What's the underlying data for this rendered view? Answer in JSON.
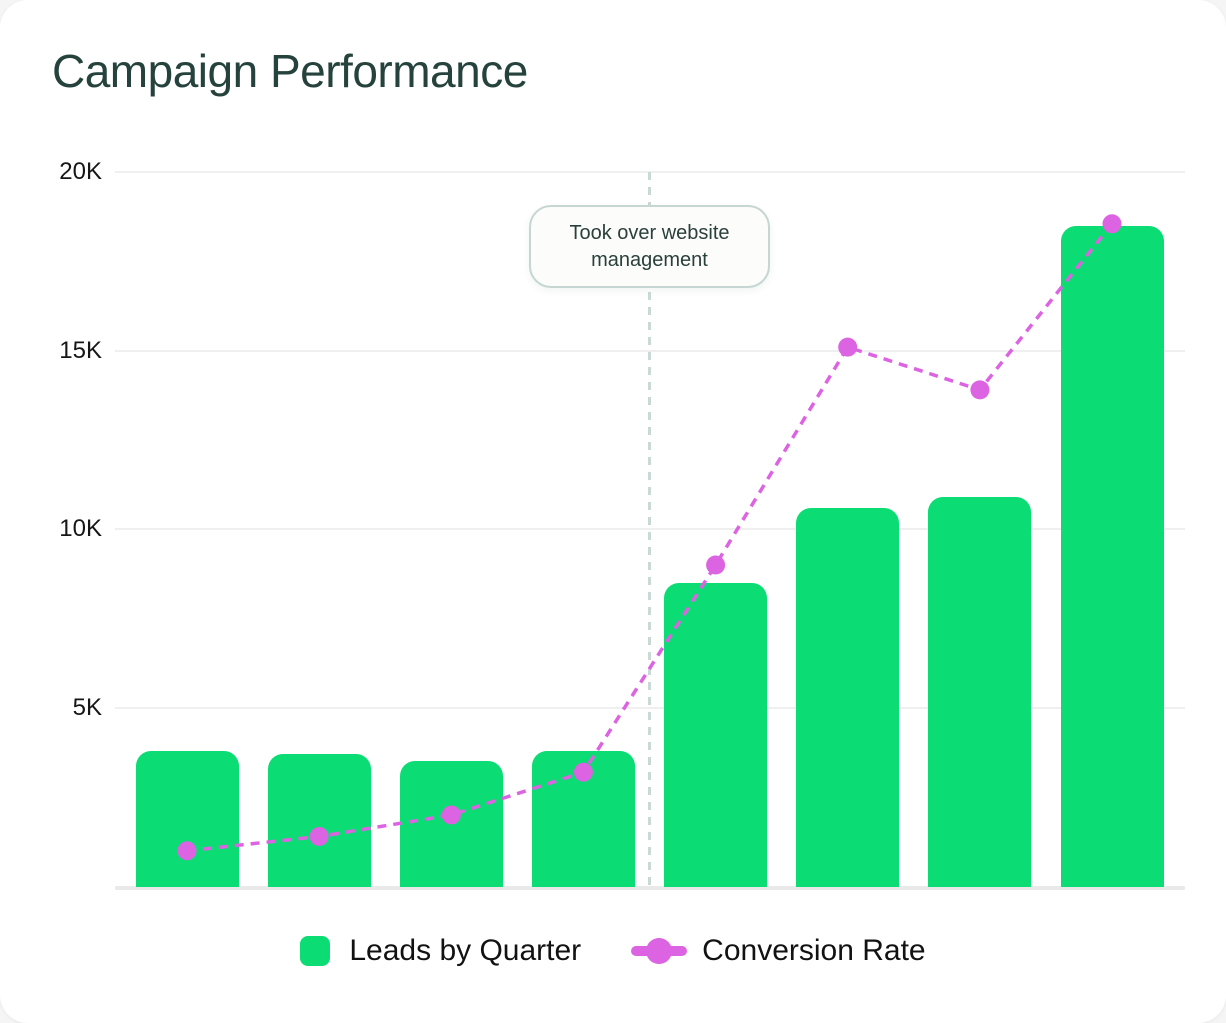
{
  "card": {
    "title": "Campaign Performance"
  },
  "colors": {
    "bar_green": "#0BDC74",
    "line_pink": "#DC63E1",
    "title_text": "#25423C",
    "axis_text": "#161616",
    "gridline": "#EFEFEF",
    "baseline": "#E9E9E9",
    "vline": "#CBD9D6",
    "annotation_border": "#C5D6D3",
    "annotation_bg": "#FCFCFA",
    "annotation_text": "#2A403C",
    "legend_text": "#121212",
    "card_bg": "#FFFFFF"
  },
  "y_axis": {
    "ticks": [
      {
        "label": "20K",
        "value": 20000
      },
      {
        "label": "15K",
        "value": 15000
      },
      {
        "label": "10K",
        "value": 10000
      },
      {
        "label": "5K",
        "value": 5000
      }
    ]
  },
  "annotation": {
    "text": "Took over website management"
  },
  "legend": [
    {
      "label": "Leads by Quarter",
      "marker": "square",
      "color": "#0BDC74"
    },
    {
      "label": "Conversion Rate",
      "marker": "line-dot",
      "color": "#DC63E1"
    }
  ],
  "chart_data": {
    "type": "bar",
    "title": "Campaign Performance",
    "categories": [
      1,
      2,
      3,
      4,
      5,
      6,
      7,
      8
    ],
    "x_axis_labels_visible": false,
    "series": [
      {
        "name": "Leads by Quarter",
        "type": "bar",
        "color": "#0BDC74",
        "values": [
          3800,
          3700,
          3500,
          3800,
          8500,
          10600,
          10900,
          18500
        ]
      },
      {
        "name": "Conversion Rate",
        "type": "line",
        "style": "dashed",
        "color": "#DC63E1",
        "values": [
          1000,
          1400,
          2000,
          3200,
          9000,
          15100,
          13900,
          18550
        ]
      }
    ],
    "ylim": [
      0,
      20000
    ],
    "ytick_labels": [
      "20K",
      "15K",
      "10K",
      "5K"
    ],
    "grid": "horizontal",
    "legend_position": "bottom",
    "annotation": {
      "text": "Took over website management",
      "vline_between_categories": [
        4,
        5
      ]
    }
  }
}
